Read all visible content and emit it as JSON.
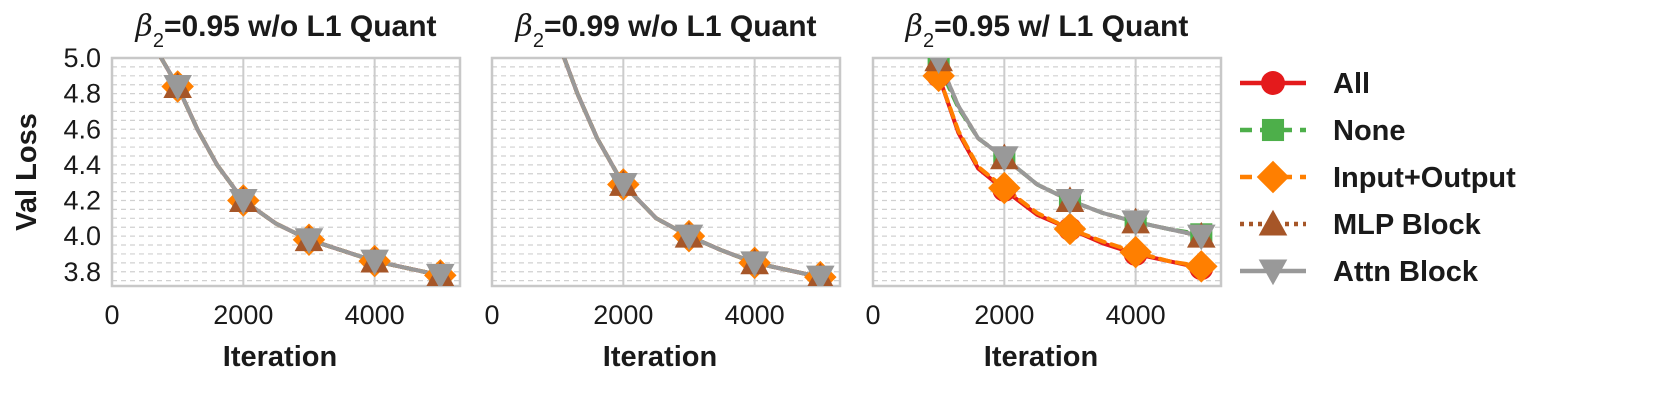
{
  "colors": {
    "all": "#e41a1c",
    "none": "#4daf4a",
    "input_output": "#ff7f00",
    "mlp_block": "#a65628",
    "attn_block": "#999999"
  },
  "chart_data": [
    {
      "type": "line",
      "title_prefix": "β",
      "title_sub": "2",
      "title_rest": "=0.95 w/o L1 Quant",
      "xlabel": "Iteration",
      "ylabel": "Val Loss",
      "xlim": [
        0,
        5300
      ],
      "ylim": [
        3.72,
        5.0
      ],
      "x_ticks": [
        "0",
        "2000",
        "4000"
      ],
      "y_ticks": [
        "3.8",
        "4.0",
        "4.2",
        "4.4",
        "4.6",
        "4.8",
        "5.0"
      ],
      "grid": true,
      "series": [
        {
          "name": "All",
          "x": [
            750,
            1000,
            1300,
            1600,
            2000,
            2500,
            3000,
            3500,
            4000,
            4500,
            5000
          ],
          "y": [
            5.0,
            4.84,
            4.6,
            4.4,
            4.2,
            4.07,
            3.98,
            3.92,
            3.86,
            3.82,
            3.78
          ]
        },
        {
          "name": "None",
          "x": [
            750,
            1000,
            1300,
            1600,
            2000,
            2500,
            3000,
            3500,
            4000,
            4500,
            5000
          ],
          "y": [
            5.0,
            4.84,
            4.6,
            4.4,
            4.2,
            4.07,
            3.98,
            3.92,
            3.86,
            3.82,
            3.78
          ]
        },
        {
          "name": "Input+Output",
          "x": [
            750,
            1000,
            1300,
            1600,
            2000,
            2500,
            3000,
            3500,
            4000,
            4500,
            5000
          ],
          "y": [
            5.0,
            4.84,
            4.6,
            4.4,
            4.2,
            4.07,
            3.98,
            3.92,
            3.86,
            3.82,
            3.78
          ]
        },
        {
          "name": "MLP Block",
          "x": [
            750,
            1000,
            1300,
            1600,
            2000,
            2500,
            3000,
            3500,
            4000,
            4500,
            5000
          ],
          "y": [
            5.0,
            4.84,
            4.6,
            4.4,
            4.2,
            4.07,
            3.98,
            3.92,
            3.86,
            3.82,
            3.78
          ]
        },
        {
          "name": "Attn Block",
          "x": [
            750,
            1000,
            1300,
            1600,
            2000,
            2500,
            3000,
            3500,
            4000,
            4500,
            5000
          ],
          "y": [
            5.0,
            4.84,
            4.6,
            4.4,
            4.2,
            4.07,
            3.98,
            3.92,
            3.86,
            3.82,
            3.78
          ]
        }
      ],
      "markers_x": [
        1000,
        2000,
        3000,
        4000,
        5000
      ]
    },
    {
      "type": "line",
      "title_prefix": "β",
      "title_sub": "2",
      "title_rest": "=0.99 w/o L1 Quant",
      "xlabel": "Iteration",
      "ylabel": "",
      "xlim": [
        0,
        5300
      ],
      "ylim": [
        3.72,
        5.0
      ],
      "x_ticks": [
        "0",
        "2000",
        "4000"
      ],
      "y_ticks": [
        "3.8",
        "4.0",
        "4.2",
        "4.4",
        "4.6",
        "4.8",
        "5.0"
      ],
      "grid": true,
      "series": [
        {
          "name": "All",
          "x": [
            1100,
            1300,
            1600,
            2000,
            2500,
            3000,
            3500,
            4000,
            4500,
            5000
          ],
          "y": [
            5.0,
            4.8,
            4.55,
            4.29,
            4.1,
            4.0,
            3.92,
            3.85,
            3.81,
            3.77
          ]
        },
        {
          "name": "None",
          "x": [
            1100,
            1300,
            1600,
            2000,
            2500,
            3000,
            3500,
            4000,
            4500,
            5000
          ],
          "y": [
            5.0,
            4.8,
            4.55,
            4.29,
            4.1,
            4.0,
            3.92,
            3.85,
            3.81,
            3.77
          ]
        },
        {
          "name": "Input+Output",
          "x": [
            1100,
            1300,
            1600,
            2000,
            2500,
            3000,
            3500,
            4000,
            4500,
            5000
          ],
          "y": [
            5.0,
            4.8,
            4.55,
            4.29,
            4.1,
            4.0,
            3.92,
            3.85,
            3.81,
            3.77
          ]
        },
        {
          "name": "MLP Block",
          "x": [
            1100,
            1300,
            1600,
            2000,
            2500,
            3000,
            3500,
            4000,
            4500,
            5000
          ],
          "y": [
            5.0,
            4.8,
            4.55,
            4.29,
            4.1,
            4.0,
            3.92,
            3.85,
            3.81,
            3.77
          ]
        },
        {
          "name": "Attn Block",
          "x": [
            1100,
            1300,
            1600,
            2000,
            2500,
            3000,
            3500,
            4000,
            4500,
            5000
          ],
          "y": [
            5.0,
            4.8,
            4.55,
            4.29,
            4.1,
            4.0,
            3.92,
            3.85,
            3.81,
            3.77
          ]
        }
      ],
      "markers_x": [
        2000,
        3000,
        4000,
        5000
      ]
    },
    {
      "type": "line",
      "title_prefix": "β",
      "title_sub": "2",
      "title_rest": "=0.95 w/ L1 Quant",
      "xlabel": "Iteration",
      "ylabel": "",
      "xlim": [
        0,
        5300
      ],
      "ylim": [
        3.72,
        5.0
      ],
      "x_ticks": [
        "0",
        "2000",
        "4000"
      ],
      "y_ticks": [
        "3.8",
        "4.0",
        "4.2",
        "4.4",
        "4.6",
        "4.8",
        "5.0"
      ],
      "grid": true,
      "series": [
        {
          "name": "All",
          "x": [
            1000,
            1300,
            1600,
            2000,
            2500,
            3000,
            3500,
            4000,
            4500,
            5000
          ],
          "y": [
            4.9,
            4.58,
            4.38,
            4.26,
            4.12,
            4.04,
            3.96,
            3.9,
            3.86,
            3.82
          ]
        },
        {
          "name": "None",
          "x": [
            1000,
            1300,
            1600,
            2000,
            2500,
            3000,
            3500,
            4000,
            4500,
            5000
          ],
          "y": [
            4.96,
            4.72,
            4.55,
            4.44,
            4.29,
            4.2,
            4.13,
            4.08,
            4.04,
            4.01
          ]
        },
        {
          "name": "Input+Output",
          "x": [
            1000,
            1300,
            1600,
            2000,
            2500,
            3000,
            3500,
            4000,
            4500,
            5000
          ],
          "y": [
            4.9,
            4.59,
            4.39,
            4.27,
            4.13,
            4.04,
            3.97,
            3.91,
            3.86,
            3.83
          ]
        },
        {
          "name": "MLP Block",
          "x": [
            1000,
            1300,
            1600,
            2000,
            2500,
            3000,
            3500,
            4000,
            4500,
            5000
          ],
          "y": [
            4.99,
            4.73,
            4.55,
            4.44,
            4.29,
            4.2,
            4.13,
            4.08,
            4.04,
            4.0
          ]
        },
        {
          "name": "Attn Block",
          "x": [
            1000,
            1300,
            1600,
            2000,
            2500,
            3000,
            3500,
            4000,
            4500,
            5000
          ],
          "y": [
            4.99,
            4.73,
            4.55,
            4.44,
            4.29,
            4.2,
            4.13,
            4.08,
            4.04,
            4.0
          ]
        }
      ],
      "markers_x": [
        1000,
        2000,
        3000,
        4000,
        5000
      ]
    }
  ],
  "legend": {
    "placement": "right",
    "items": [
      {
        "label": "All",
        "marker": "circle",
        "line_style": "solid",
        "color_key": "all"
      },
      {
        "label": "None",
        "marker": "square",
        "line_style": "dashed",
        "color_key": "none"
      },
      {
        "label": "Input+Output",
        "marker": "diamond",
        "line_style": "dashed",
        "color_key": "input_output"
      },
      {
        "label": "MLP Block",
        "marker": "triangle-up",
        "line_style": "dotted",
        "color_key": "mlp_block"
      },
      {
        "label": "Attn Block",
        "marker": "triangle-down",
        "line_style": "solid",
        "color_key": "attn_block"
      }
    ]
  }
}
